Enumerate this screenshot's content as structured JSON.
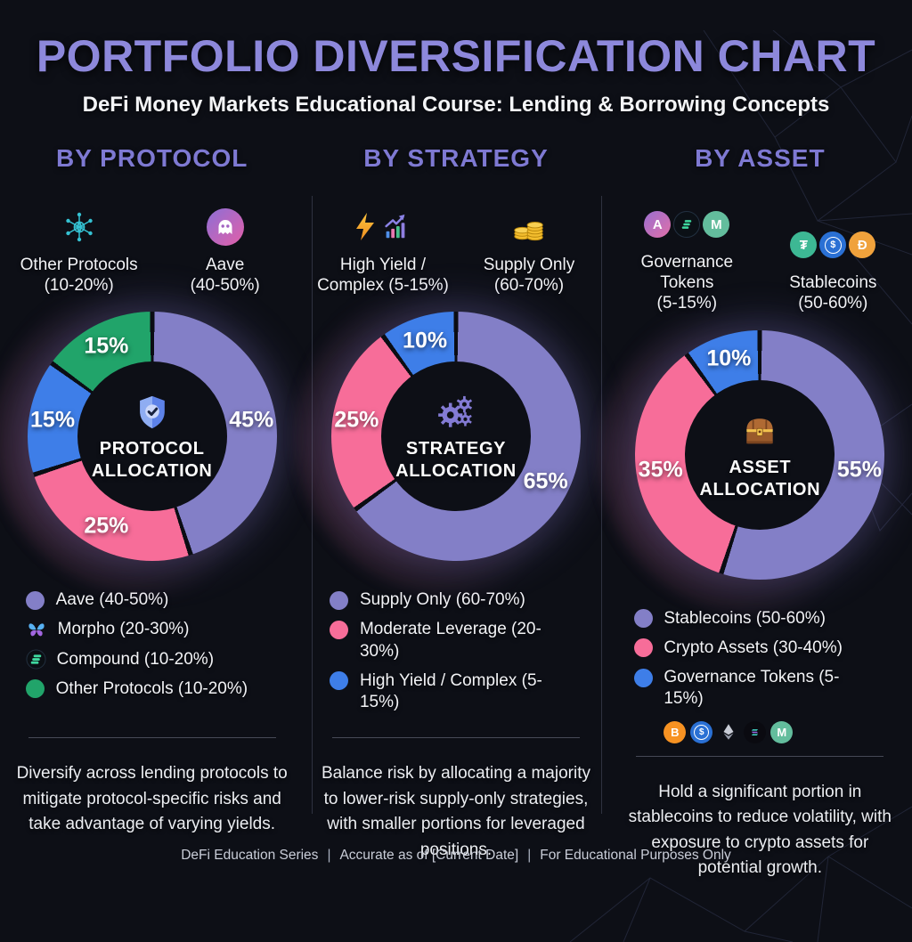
{
  "header": {
    "title": "PORTFOLIO DIVERSIFICATION CHART",
    "subtitle": "DeFi Money Markets Educational Course: Lending & Borrowing Concepts"
  },
  "palette": {
    "background": "#0d0f16",
    "title_purple": "#8d88db",
    "heading_purple": "#7e79d2",
    "slice_purple": "#837fc7",
    "slice_pink": "#f76d99",
    "slice_blue": "#3e7ee8",
    "slice_green": "#21a46a"
  },
  "columns": [
    {
      "heading": "BY PROTOCOL",
      "callouts": [
        {
          "icon": "network-icon",
          "line1": "Other Protocols",
          "line2": "(10-20%)"
        },
        {
          "icon": "aave-ghost-icon",
          "line1": "Aave",
          "line2": "(40-50%)"
        }
      ],
      "donut": {
        "center_icon": "shield-check-icon",
        "center_line1": "PROTOCOL",
        "center_line2": "ALLOCATION",
        "slices": [
          {
            "name": "Aave",
            "label": "45%",
            "value": 45,
            "color": "#837fc7"
          },
          {
            "name": "Morpho",
            "label": "25%",
            "value": 25,
            "color": "#f76d99"
          },
          {
            "name": "Compound",
            "label": "15%",
            "value": 15,
            "color": "#3e7ee8"
          },
          {
            "name": "Other Protocols",
            "label": "15%",
            "value": 15,
            "color": "#21a46a"
          }
        ]
      },
      "legend": [
        {
          "type": "dot",
          "color": "#837fc7",
          "label": "Aave (40-50%)"
        },
        {
          "type": "morpho-butterfly-icon",
          "label": "Morpho (20-30%)"
        },
        {
          "type": "compound-icon",
          "label": "Compound (10-20%)"
        },
        {
          "type": "dot",
          "color": "#21a46a",
          "label": "Other Protocols (10-20%)"
        }
      ],
      "description": "Diversify across lending protocols to mitigate protocol-specific risks and take advantage of varying yields."
    },
    {
      "heading": "BY STRATEGY",
      "callouts": [
        {
          "icon": "lightning-and-chart-icon",
          "line1": "High Yield /",
          "line2": "Complex (5-15%)"
        },
        {
          "icon": "coin-stack-icon",
          "line1": "Supply Only",
          "line2": "(60-70%)"
        }
      ],
      "donut": {
        "center_icon": "gears-icon",
        "center_line1": "STRATEGY",
        "center_line2": "ALLOCATION",
        "slices": [
          {
            "name": "Supply Only",
            "label": "65%",
            "value": 65,
            "color": "#837fc7"
          },
          {
            "name": "Moderate Leverage",
            "label": "25%",
            "value": 25,
            "color": "#f76d99"
          },
          {
            "name": "High Yield / Complex",
            "label": "10%",
            "value": 10,
            "color": "#3e7ee8"
          }
        ]
      },
      "legend": [
        {
          "type": "dot",
          "color": "#837fc7",
          "label": "Supply Only (60-70%)"
        },
        {
          "type": "dot",
          "color": "#f76d99",
          "label": "Moderate Leverage (20-30%)"
        },
        {
          "type": "dot",
          "color": "#3e7ee8",
          "label": "High Yield / Complex (5-15%)"
        }
      ],
      "description": "Balance risk by allocating a majority to lower-risk supply-only strategies, with smaller portions for leveraged positions."
    },
    {
      "heading": "BY ASSET",
      "callouts": [
        {
          "icon": "governance-token-icons",
          "line1": "Governance Tokens",
          "line2": "(5-15%)",
          "tokens": [
            {
              "name": "aave-token",
              "glyph": "A"
            },
            {
              "name": "compound-token",
              "glyph": ""
            },
            {
              "name": "maker-token",
              "glyph": "M"
            }
          ]
        },
        {
          "icon": "stablecoin-icons",
          "line1": "Stablecoins",
          "line2": "(50-60%)",
          "tokens": [
            {
              "name": "tether-token",
              "glyph": "₮"
            },
            {
              "name": "usdc-token",
              "glyph": "$"
            },
            {
              "name": "dai-token",
              "glyph": "Đ"
            }
          ]
        }
      ],
      "donut": {
        "center_icon": "treasure-chest-icon",
        "center_line1": "ASSET",
        "center_line2": "ALLOCATION",
        "slices": [
          {
            "name": "Stablecoins",
            "label": "55%",
            "value": 55,
            "color": "#837fc7"
          },
          {
            "name": "Crypto Assets",
            "label": "35%",
            "value": 35,
            "color": "#f76d99"
          },
          {
            "name": "Governance Tokens",
            "label": "10%",
            "value": 10,
            "color": "#3e7ee8"
          }
        ]
      },
      "legend": [
        {
          "type": "dot",
          "color": "#837fc7",
          "label": "Stablecoins (50-60%)"
        },
        {
          "type": "dot",
          "color": "#f76d99",
          "label": "Crypto Assets (30-40%)"
        },
        {
          "type": "dot",
          "color": "#3e7ee8",
          "label": "Governance Tokens (5-15%)",
          "tokens": [
            {
              "name": "bitcoin-token",
              "glyph": "B"
            },
            {
              "name": "usdc-token",
              "glyph": "$"
            },
            {
              "name": "ethereum-token",
              "glyph": ""
            },
            {
              "name": "solana-token",
              "glyph": ""
            },
            {
              "name": "maker-token",
              "glyph": "M"
            }
          ]
        }
      ],
      "description": "Hold a significant portion in stablecoins to reduce volatility, with exposure to crypto assets for potential growth."
    }
  ],
  "footer": {
    "separator": "|",
    "items": [
      "DeFi Education Series",
      "Accurate as of [Current Date]",
      "For Educational Purposes Only"
    ]
  },
  "chart_data": [
    {
      "type": "pie",
      "title": "PROTOCOL ALLOCATION",
      "labels": [
        "Aave",
        "Morpho",
        "Compound",
        "Other Protocols"
      ],
      "values": [
        45,
        25,
        15,
        15
      ],
      "colors": [
        "#837fc7",
        "#f76d99",
        "#3e7ee8",
        "#21a46a"
      ],
      "legend_ranges": [
        "40-50%",
        "20-30%",
        "10-20%",
        "10-20%"
      ],
      "legend_position": "below",
      "donut": true
    },
    {
      "type": "pie",
      "title": "STRATEGY ALLOCATION",
      "labels": [
        "Supply Only",
        "Moderate Leverage",
        "High Yield / Complex"
      ],
      "values": [
        65,
        25,
        10
      ],
      "colors": [
        "#837fc7",
        "#f76d99",
        "#3e7ee8"
      ],
      "legend_ranges": [
        "60-70%",
        "20-30%",
        "5-15%"
      ],
      "legend_position": "below",
      "donut": true
    },
    {
      "type": "pie",
      "title": "ASSET ALLOCATION",
      "labels": [
        "Stablecoins",
        "Crypto Assets",
        "Governance Tokens"
      ],
      "values": [
        55,
        35,
        10
      ],
      "colors": [
        "#837fc7",
        "#f76d99",
        "#3e7ee8"
      ],
      "legend_ranges": [
        "50-60%",
        "30-40%",
        "5-15%"
      ],
      "legend_position": "below",
      "donut": true
    }
  ]
}
